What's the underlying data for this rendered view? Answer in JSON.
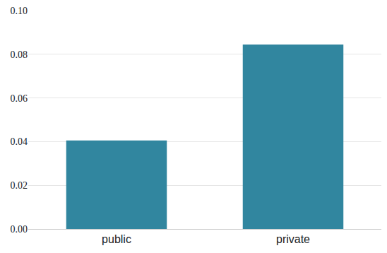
{
  "chart_data": {
    "type": "bar",
    "categories": [
      "public",
      "private"
    ],
    "values": [
      0.0405,
      0.0845
    ],
    "color": "#31869f",
    "ylim": [
      0,
      0.1
    ],
    "yticks": [
      {
        "value": 0,
        "label": "0.00"
      },
      0.02,
      0.04,
      0.06,
      0.08,
      {
        "value": 0.1,
        "label": "0.10"
      }
    ],
    "grid": true
  }
}
